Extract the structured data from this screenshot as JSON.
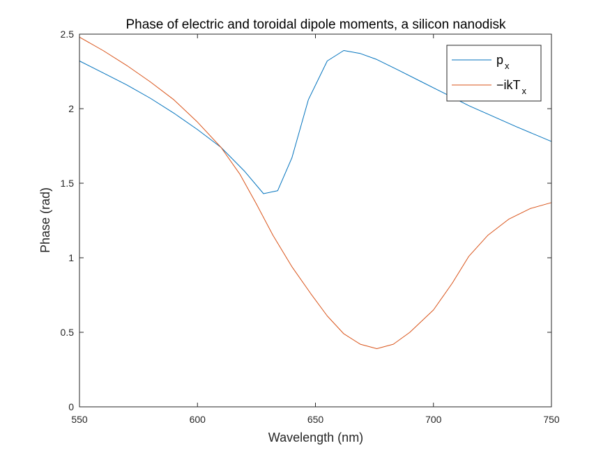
{
  "chart_data": {
    "type": "line",
    "title": "Phase of electric and toroidal dipole moments, a silicon nanodisk",
    "xlabel": "Wavelength (nm)",
    "ylabel": "Phase (rad)",
    "xlim": [
      550,
      750
    ],
    "ylim": [
      0,
      2.5
    ],
    "x_ticks": [
      550,
      600,
      650,
      700,
      750
    ],
    "y_ticks": [
      0,
      0.5,
      1,
      1.5,
      2,
      2.5
    ],
    "x_tick_labels": [
      "550",
      "600",
      "650",
      "700",
      "750"
    ],
    "y_tick_labels": [
      "0",
      "0.5",
      "1",
      "1.5",
      "2",
      "2.5"
    ],
    "grid": false,
    "box": true,
    "legend_position": "top-right",
    "series": [
      {
        "name": "p_x",
        "legend_main": "p",
        "legend_sub": "x",
        "color": "#0072BD",
        "x": [
          550,
          560,
          570,
          580,
          590,
          600,
          610,
          620,
          628,
          634,
          640,
          647,
          655,
          662,
          669,
          676,
          685,
          695,
          705,
          715,
          725,
          735,
          750
        ],
        "y": [
          2.32,
          2.24,
          2.16,
          2.07,
          1.97,
          1.86,
          1.74,
          1.58,
          1.43,
          1.45,
          1.67,
          2.06,
          2.32,
          2.39,
          2.37,
          2.33,
          2.26,
          2.18,
          2.1,
          2.02,
          1.95,
          1.88,
          1.78
        ]
      },
      {
        "name": "-ikT_x",
        "legend_main": "−ikT",
        "legend_sub": "x",
        "color": "#D95319",
        "x": [
          550,
          560,
          570,
          580,
          590,
          600,
          610,
          618,
          625,
          632,
          640,
          648,
          655,
          662,
          669,
          676,
          683,
          690,
          700,
          708,
          715,
          723,
          732,
          741,
          750
        ],
        "y": [
          2.48,
          2.39,
          2.29,
          2.18,
          2.06,
          1.91,
          1.74,
          1.56,
          1.36,
          1.15,
          0.94,
          0.76,
          0.61,
          0.49,
          0.42,
          0.39,
          0.42,
          0.5,
          0.65,
          0.83,
          1.01,
          1.15,
          1.26,
          1.33,
          1.37
        ]
      }
    ]
  }
}
